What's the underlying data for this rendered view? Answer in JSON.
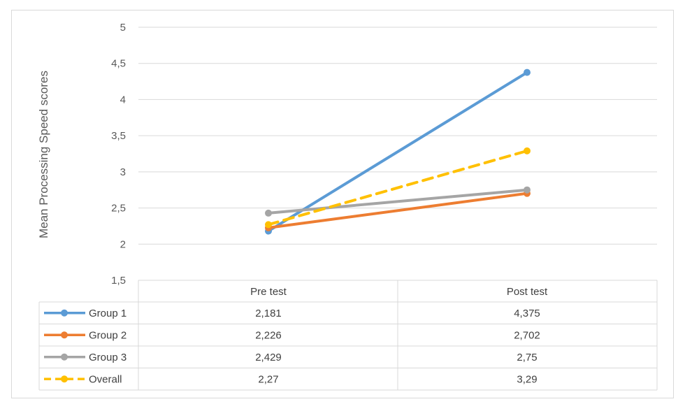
{
  "chart_data": {
    "type": "line",
    "ylabel": "Mean Processing Speed scores",
    "ylim": [
      1.5,
      5
    ],
    "yticks": [
      "1,5",
      "2",
      "2,5",
      "3",
      "3,5",
      "4",
      "4,5",
      "5"
    ],
    "yticks_values": [
      1.5,
      2,
      2.5,
      3,
      3.5,
      4,
      4.5,
      5
    ],
    "grid": true,
    "categories": [
      "Pre test",
      "Post test"
    ],
    "legend_position": "data-table-left",
    "series": [
      {
        "name": "Group 1",
        "color": "#5b9bd5",
        "dashed": false,
        "values": [
          2.181,
          4.375
        ],
        "labels": [
          "2,181",
          "4,375"
        ]
      },
      {
        "name": "Group 2",
        "color": "#ed7d31",
        "dashed": false,
        "values": [
          2.226,
          2.702
        ],
        "labels": [
          "2,226",
          "2,702"
        ]
      },
      {
        "name": "Group 3",
        "color": "#a5a5a5",
        "dashed": false,
        "values": [
          2.429,
          2.75
        ],
        "labels": [
          "2,429",
          "2,75"
        ]
      },
      {
        "name": "Overall",
        "color": "#ffc000",
        "dashed": true,
        "values": [
          2.27,
          3.29
        ],
        "labels": [
          "2,27",
          "3,29"
        ]
      }
    ]
  }
}
